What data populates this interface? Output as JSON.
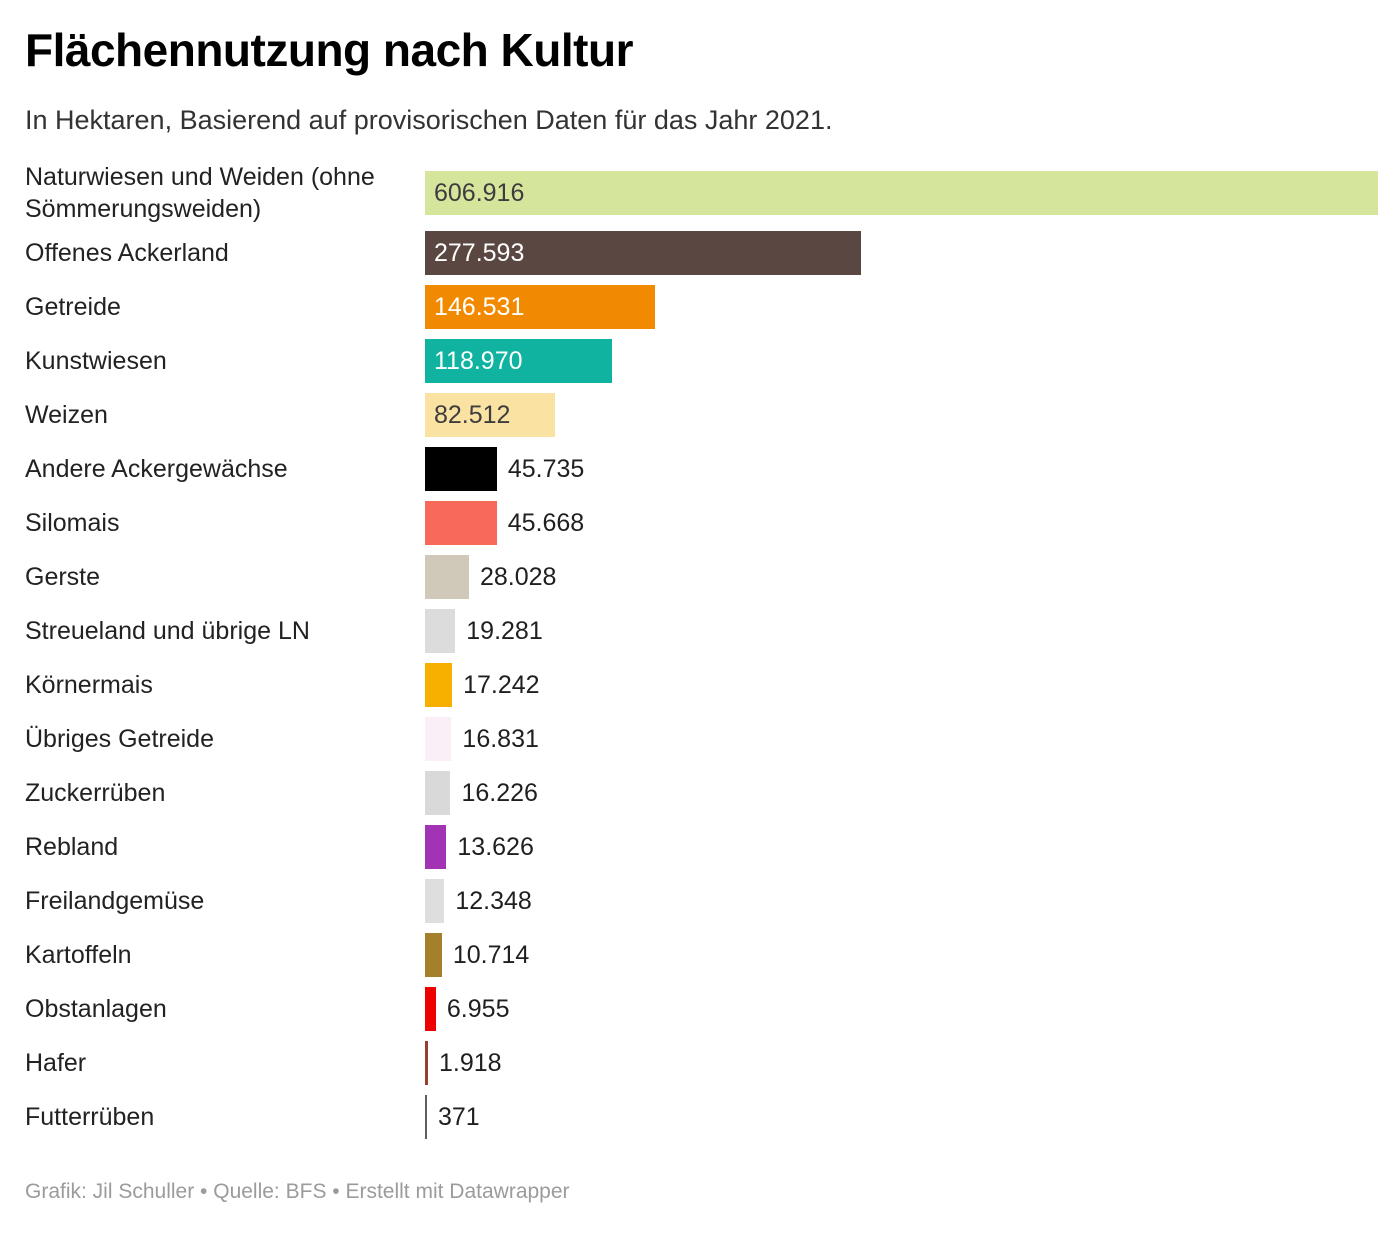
{
  "header": {
    "title": "Flächennutzung nach Kultur",
    "subtitle": "In Hektaren, Basierend auf provisorischen Daten für das Jahr 2021."
  },
  "footer": {
    "credit": "Grafik: Jil Schuller • Quelle: BFS • Erstellt mit Datawrapper"
  },
  "chart_data": {
    "type": "bar",
    "orientation": "horizontal",
    "title": "Flächennutzung nach Kultur",
    "subtitle": "In Hektaren, Basierend auf provisorischen Daten für das Jahr 2021.",
    "unit": "Hektaren",
    "xlim": [
      0,
      606916
    ],
    "grid": false,
    "categories": [
      "Naturwiesen und Weiden (ohne Sömmerungsweiden)",
      "Offenes Ackerland",
      "Getreide",
      "Kunstwiesen",
      "Weizen",
      "Andere Ackergewächse",
      "Silomais",
      "Gerste",
      "Streueland und übrige LN",
      "Körnermais",
      "Übriges Getreide",
      "Zuckerrüben",
      "Rebland",
      "Freilandgemüse",
      "Kartoffeln",
      "Obstanlagen",
      "Hafer",
      "Futterrüben"
    ],
    "values": [
      606916,
      277593,
      146531,
      118970,
      82512,
      45735,
      45668,
      28028,
      19281,
      17242,
      16831,
      16226,
      13626,
      12348,
      10714,
      6955,
      1918,
      371
    ],
    "value_labels": [
      "606.916",
      "277.593",
      "146.531",
      "118.970",
      "82.512",
      "45.735",
      "45.668",
      "28.028",
      "19.281",
      "17.242",
      "16.831",
      "16.226",
      "13.626",
      "12.348",
      "10.714",
      "6.955",
      "1.918",
      "371"
    ],
    "bar_colors": [
      "#d5e59c",
      "#5b4742",
      "#f18a00",
      "#0fb3a0",
      "#fae2a2",
      "#000000",
      "#f8695a",
      "#d0c9ba",
      "#dcdcdc",
      "#f7b000",
      "#faeef7",
      "#d9d9d9",
      "#a233b4",
      "#dedede",
      "#a5802c",
      "#ee0000",
      "#96412f",
      "#5c5e60"
    ],
    "value_label_inside": [
      true,
      true,
      true,
      true,
      true,
      false,
      false,
      false,
      false,
      false,
      false,
      false,
      false,
      false,
      false,
      false,
      false,
      false
    ],
    "value_label_colors": [
      "#3d3d3d",
      "#ffffff",
      "#ffffff",
      "#ffffff",
      "#3d3d3d",
      "#1f1f1f",
      "#1f1f1f",
      "#1f1f1f",
      "#1f1f1f",
      "#1f1f1f",
      "#1f1f1f",
      "#1f1f1f",
      "#1f1f1f",
      "#1f1f1f",
      "#1f1f1f",
      "#1f1f1f",
      "#1f1f1f",
      "#1f1f1f"
    ]
  }
}
